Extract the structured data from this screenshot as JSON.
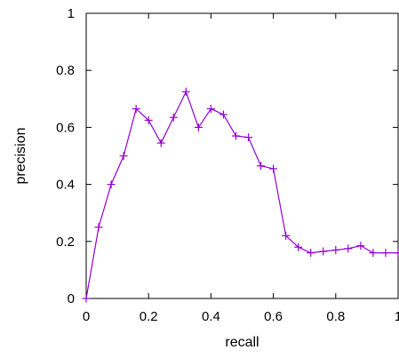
{
  "chart_data": {
    "type": "line",
    "xlabel": "recall",
    "ylabel": "precision",
    "xlim": [
      0,
      1
    ],
    "ylim": [
      0,
      1
    ],
    "x_ticks": [
      "0",
      "0.2",
      "0.4",
      "0.6",
      "0.8",
      "1"
    ],
    "y_ticks": [
      "0",
      "0.2",
      "0.4",
      "0.6",
      "0.8",
      "1"
    ],
    "grid": false,
    "marker": "plus",
    "series": [
      {
        "color": "#9400d3",
        "x": [
          0,
          0.04,
          0.08,
          0.12,
          0.16,
          0.2,
          0.24,
          0.28,
          0.32,
          0.36,
          0.4,
          0.44,
          0.48,
          0.52,
          0.56,
          0.6,
          0.64,
          0.68,
          0.72,
          0.76,
          0.8,
          0.84,
          0.88,
          0.92,
          0.96,
          1.0
        ],
        "y": [
          0,
          0.25,
          0.4,
          0.5,
          0.665,
          0.625,
          0.545,
          0.635,
          0.725,
          0.6,
          0.665,
          0.645,
          0.57,
          0.565,
          0.465,
          0.455,
          0.22,
          0.18,
          0.16,
          0.165,
          0.17,
          0.175,
          0.185,
          0.16,
          0.16,
          0.16
        ]
      }
    ]
  }
}
